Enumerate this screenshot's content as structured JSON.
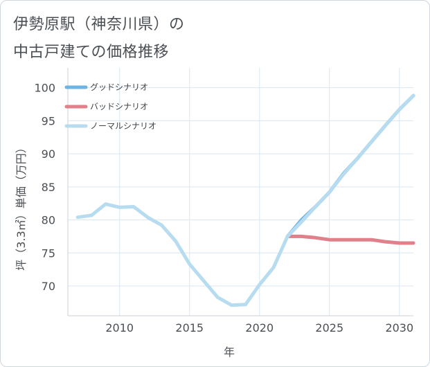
{
  "title_lines": [
    "伊勢原駅（神奈川県）の",
    "中古戸建ての価格推移"
  ],
  "chart_data": {
    "type": "line",
    "title": "伊勢原駅（神奈川県）の中古戸建ての価格推移",
    "xlabel": "年",
    "ylabel": "坪（3.3㎡）単価（万円）",
    "xlim": [
      2006.3,
      2031
    ],
    "ylim": [
      65.5,
      103
    ],
    "x_ticks": [
      2010,
      2015,
      2020,
      2025,
      2030
    ],
    "y_ticks": [
      70,
      75,
      80,
      85,
      90,
      95,
      100
    ],
    "grid": true,
    "legend_position": "top-left",
    "series": [
      {
        "name": "グッドシナリオ",
        "color": "#6ab4e6",
        "x": [
          2022,
          2023,
          2024,
          2025,
          2026,
          2027,
          2028,
          2029,
          2030,
          2031
        ],
        "y": [
          77.5,
          80.0,
          82.0,
          84.2,
          87.0,
          89.3,
          91.8,
          94.3,
          96.7,
          98.8
        ]
      },
      {
        "name": "バッドシナリオ",
        "color": "#e0808a",
        "x": [
          2022,
          2023,
          2024,
          2025,
          2026,
          2027,
          2028,
          2029,
          2030,
          2031
        ],
        "y": [
          77.5,
          77.5,
          77.3,
          77.0,
          77.0,
          77.0,
          77.0,
          76.7,
          76.5,
          76.5
        ]
      },
      {
        "name": "ノーマルシナリオ",
        "color": "#b7dcef",
        "x": [
          2007,
          2008,
          2009,
          2010,
          2011,
          2012,
          2013,
          2014,
          2015,
          2016,
          2017,
          2018,
          2019,
          2020,
          2021,
          2022,
          2023,
          2024,
          2025,
          2026,
          2027,
          2028,
          2029,
          2030,
          2031
        ],
        "y": [
          80.4,
          80.7,
          82.4,
          81.9,
          82.0,
          80.4,
          79.2,
          76.8,
          73.3,
          70.8,
          68.3,
          67.1,
          67.2,
          70.2,
          72.8,
          77.5,
          79.7,
          82.0,
          84.2,
          86.9,
          89.3,
          91.8,
          94.3,
          96.7,
          98.8
        ]
      }
    ]
  }
}
